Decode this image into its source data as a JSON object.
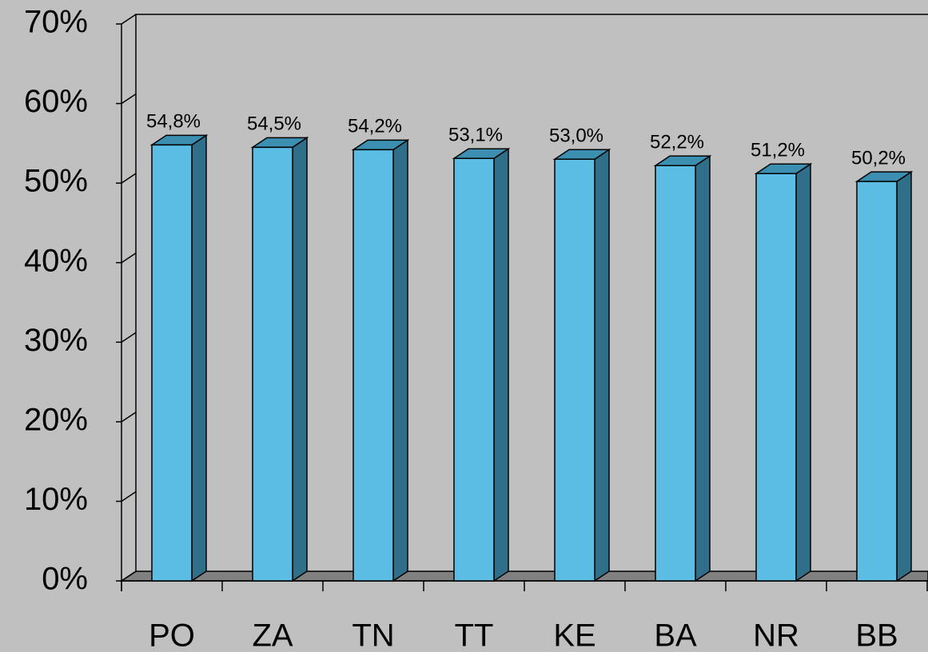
{
  "chart_data": {
    "type": "bar",
    "categories": [
      "PO",
      "ZA",
      "TN",
      "TT",
      "KE",
      "BA",
      "NR",
      "BB"
    ],
    "values": [
      54.8,
      54.5,
      54.2,
      53.1,
      53.0,
      52.2,
      51.2,
      50.2
    ],
    "value_labels": [
      "54,8%",
      "54,5%",
      "54,2%",
      "53,1%",
      "53,0%",
      "52,2%",
      "51,2%",
      "50,2%"
    ],
    "color": "#5bbce4",
    "ylim": [
      0,
      70
    ],
    "yticks": [
      {
        "value": 0,
        "label": "0%"
      },
      {
        "value": 10,
        "label": "10%"
      },
      {
        "value": 20,
        "label": "20%"
      },
      {
        "value": 30,
        "label": "30%"
      },
      {
        "value": 40,
        "label": "40%"
      },
      {
        "value": 50,
        "label": "50%"
      },
      {
        "value": 60,
        "label": "60%"
      },
      {
        "value": 70,
        "label": "70%"
      }
    ]
  }
}
